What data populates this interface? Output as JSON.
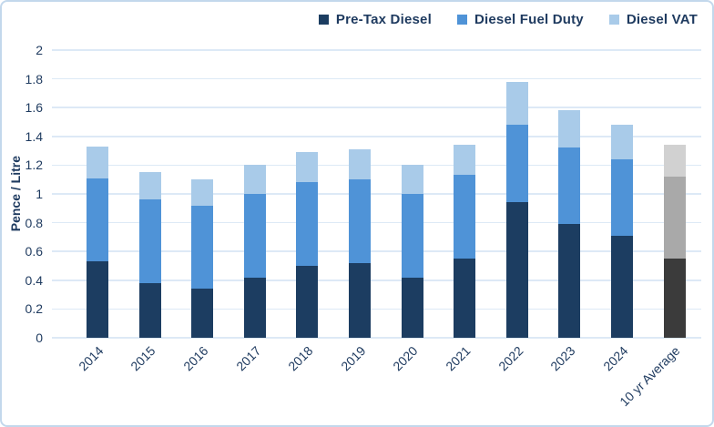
{
  "card": {
    "background": "#ffffff",
    "border_color": "#c3d8ec"
  },
  "text_color": "#1e3a5f",
  "gridline_color": "#dde9f6",
  "chart_data": {
    "type": "bar",
    "stacked": true,
    "title": "",
    "xlabel": "",
    "ylabel": "Pence / Litre",
    "ylim": [
      0,
      2
    ],
    "ytick_step": 0.2,
    "ytick_labels": [
      "0",
      "0.2",
      "0.4",
      "0.6",
      "0.8",
      "1",
      "1.2",
      "1.4",
      "1.6",
      "1.8",
      "2"
    ],
    "grid": true,
    "legend_position": "top-right",
    "categories": [
      "2014",
      "2015",
      "2016",
      "2017",
      "2018",
      "2019",
      "2020",
      "2021",
      "2022",
      "2023",
      "2024",
      "10 yr Average"
    ],
    "series": [
      {
        "name": "Pre-Tax Diesel",
        "color": "#1c3d61",
        "avg_color": "#3b3b3b",
        "values": [
          0.53,
          0.38,
          0.34,
          0.42,
          0.5,
          0.52,
          0.42,
          0.55,
          0.94,
          0.79,
          0.71,
          0.55
        ]
      },
      {
        "name": "Diesel Fuel Duty",
        "color": "#4f93d7",
        "avg_color": "#a9a9a9",
        "values": [
          0.58,
          0.58,
          0.58,
          0.58,
          0.58,
          0.58,
          0.58,
          0.58,
          0.54,
          0.53,
          0.53,
          0.57
        ]
      },
      {
        "name": "Diesel VAT",
        "color": "#a9cbe9",
        "avg_color": "#d1d1d1",
        "values": [
          0.22,
          0.19,
          0.18,
          0.2,
          0.21,
          0.21,
          0.2,
          0.21,
          0.3,
          0.26,
          0.24,
          0.22
        ]
      }
    ],
    "totals": [
      1.33,
      1.15,
      1.1,
      1.2,
      1.29,
      1.31,
      1.2,
      1.34,
      1.78,
      1.58,
      1.48,
      1.34
    ]
  }
}
